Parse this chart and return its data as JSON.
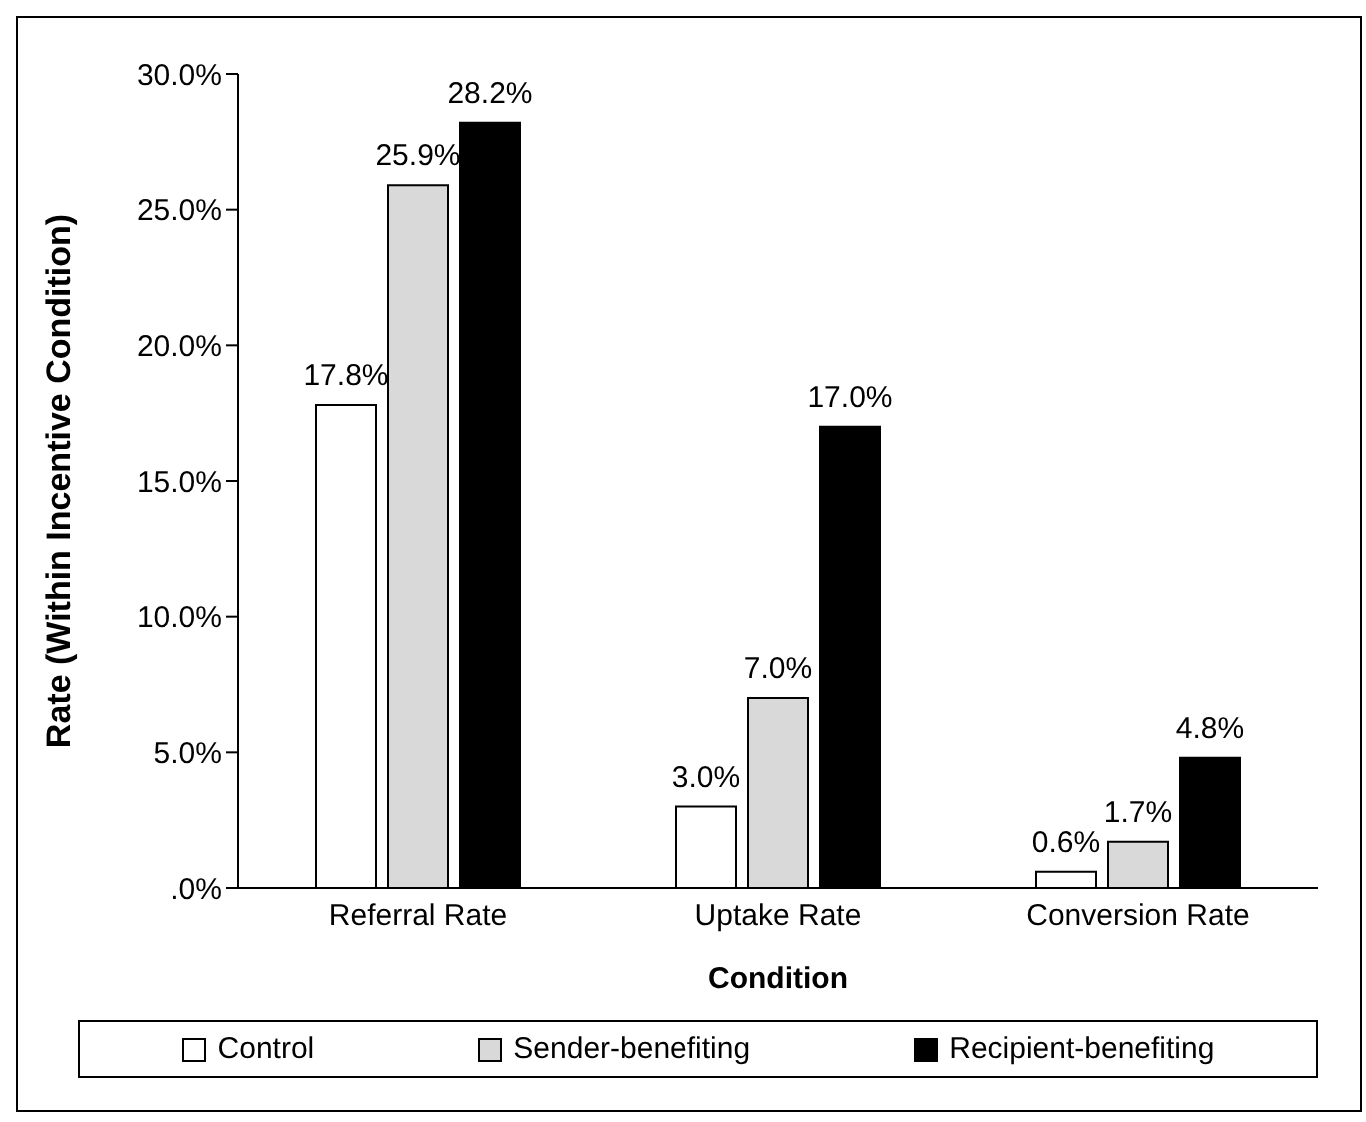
{
  "chart_data": {
    "type": "bar",
    "xlabel": "Condition",
    "ylabel": "Rate (Within Incentive Condition)",
    "categories": [
      "Referral Rate",
      "Uptake Rate",
      "Conversion Rate"
    ],
    "series": [
      {
        "name": "Control",
        "color": "#ffffff",
        "values": [
          17.8,
          3.0,
          0.6
        ],
        "value_labels": [
          "17.8%",
          "3.0%",
          "0.6%"
        ]
      },
      {
        "name": "Sender-benefiting",
        "color": "#d9d9d9",
        "values": [
          25.9,
          7.0,
          1.7
        ],
        "value_labels": [
          "25.9%",
          "7.0%",
          "1.7%"
        ]
      },
      {
        "name": "Recipient-benefiting",
        "color": "#000000",
        "values": [
          28.2,
          17.0,
          4.8
        ],
        "value_labels": [
          "28.2%",
          "17.0%",
          "4.8%"
        ]
      }
    ],
    "ylim": [
      0,
      30
    ],
    "yticks": [
      {
        "value": 0,
        "label": ".0%"
      },
      {
        "value": 5,
        "label": "5.0%"
      },
      {
        "value": 10,
        "label": "10.0%"
      },
      {
        "value": 15,
        "label": "15.0%"
      },
      {
        "value": 20,
        "label": "20.0%"
      },
      {
        "value": 25,
        "label": "25.0%"
      },
      {
        "value": 30,
        "label": "30.0%"
      }
    ],
    "grid": false,
    "legend": "bottom"
  }
}
